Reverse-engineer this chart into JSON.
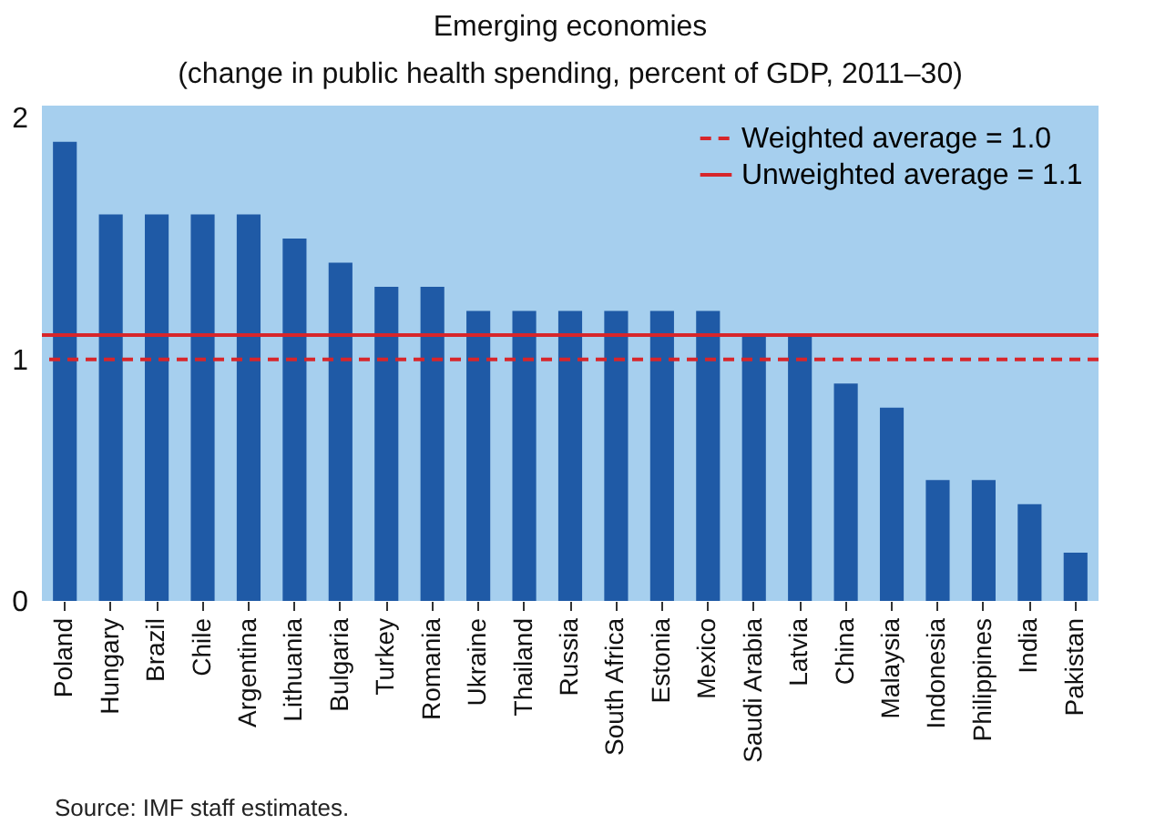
{
  "chart_data": {
    "type": "bar",
    "title": "Emerging economies",
    "subtitle": "(change in public health spending, percent of GDP, 2011–30)",
    "categories": [
      "Poland",
      "Hungary",
      "Brazil",
      "Chile",
      "Argentina",
      "Lithuania",
      "Bulgaria",
      "Turkey",
      "Romania",
      "Ukraine",
      "Thailand",
      "Russia",
      "South Africa",
      "Estonia",
      "Mexico",
      "Saudi Arabia",
      "Latvia",
      "China",
      "Malaysia",
      "Indonesia",
      "Philippines",
      "India",
      "Pakistan"
    ],
    "values": [
      1.9,
      1.6,
      1.6,
      1.6,
      1.6,
      1.5,
      1.4,
      1.3,
      1.3,
      1.2,
      1.2,
      1.2,
      1.2,
      1.2,
      1.2,
      1.1,
      1.1,
      0.9,
      0.8,
      0.5,
      0.5,
      0.4,
      0.2
    ],
    "color": "#1f5aa6",
    "ylim": [
      0,
      2.05
    ],
    "yticks": [
      {
        "value": 0,
        "label": "0"
      },
      {
        "value": 1,
        "label": "1"
      },
      {
        "value": 2,
        "label": "2"
      }
    ],
    "legend": "top right",
    "ref_lines": [
      {
        "axis": "y",
        "value": 1.0,
        "label": "Weighted average = 1.0",
        "color": "#d7262b",
        "line_style": "dashed"
      },
      {
        "axis": "y",
        "value": 1.1,
        "label": "Unweighted average = 1.1",
        "color": "#d7262b",
        "line_style": "solid"
      }
    ],
    "annotations": [
      "Source: IMF staff estimates."
    ]
  }
}
